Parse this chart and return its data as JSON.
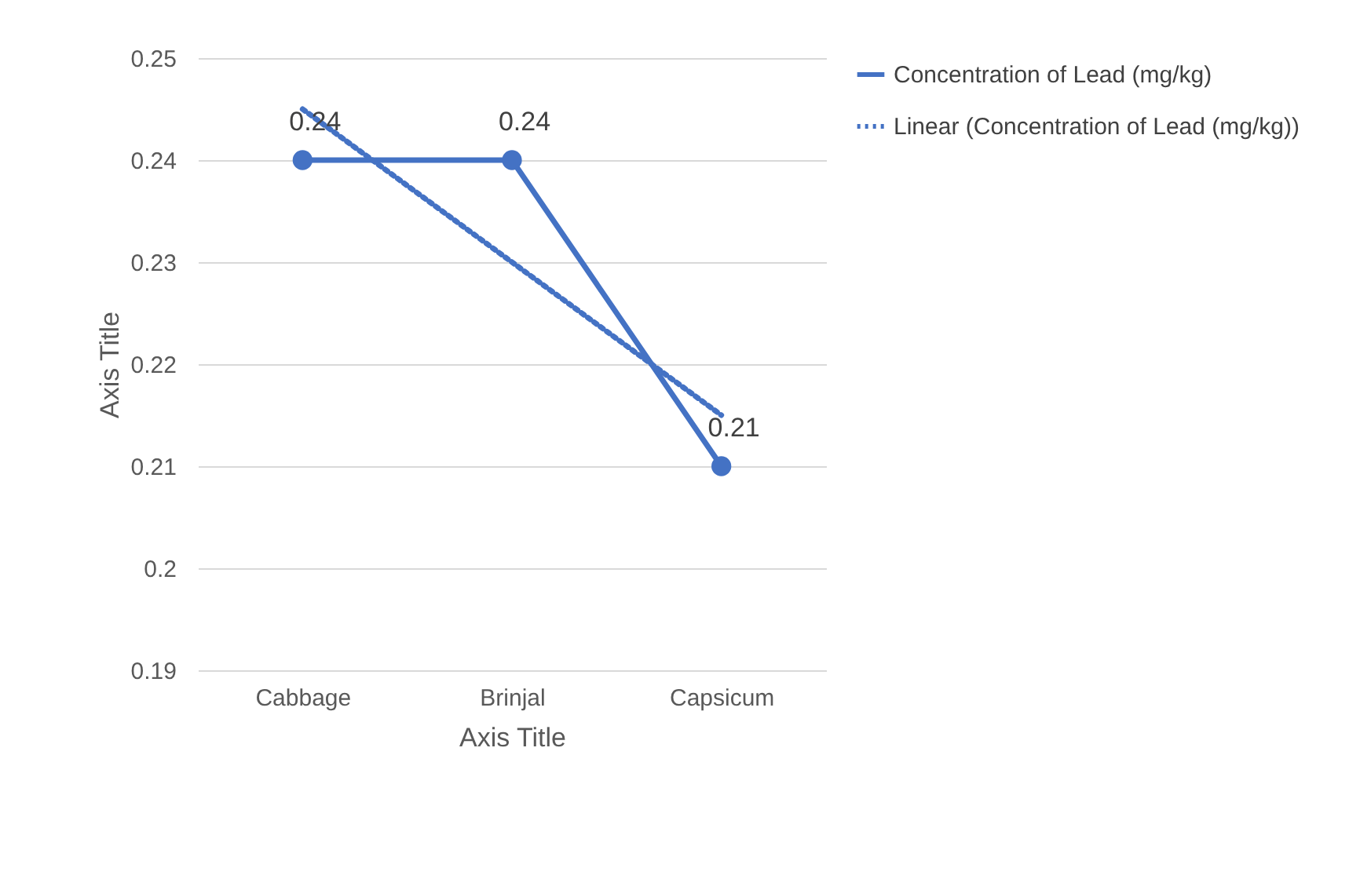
{
  "chart_data": {
    "type": "line",
    "xlabel": "Axis Title",
    "ylabel": "Axis Title",
    "categories": [
      "Cabbage",
      "Brinjal",
      "Capsicum"
    ],
    "series": [
      {
        "name": "Concentration of Lead (mg/kg)",
        "color": "#4472c4",
        "values": [
          0.24,
          0.24,
          0.21
        ],
        "value_labels": [
          "0.24",
          "0.24",
          "0.21"
        ],
        "marker": "circle",
        "line_style": "solid"
      },
      {
        "name": "Linear (Concentration of Lead (mg/kg))",
        "color": "#4472c4",
        "type": "line",
        "x": [
          "Cabbage",
          "Capsicum"
        ],
        "values": [
          0.245,
          0.215
        ],
        "marker": "none",
        "line_style": "dotted"
      }
    ],
    "ylim": [
      0.19,
      0.25
    ],
    "yticks": [
      0.19,
      0.2,
      0.21,
      0.22,
      0.23,
      0.24,
      0.25
    ],
    "grid": "y",
    "legend": "right"
  }
}
